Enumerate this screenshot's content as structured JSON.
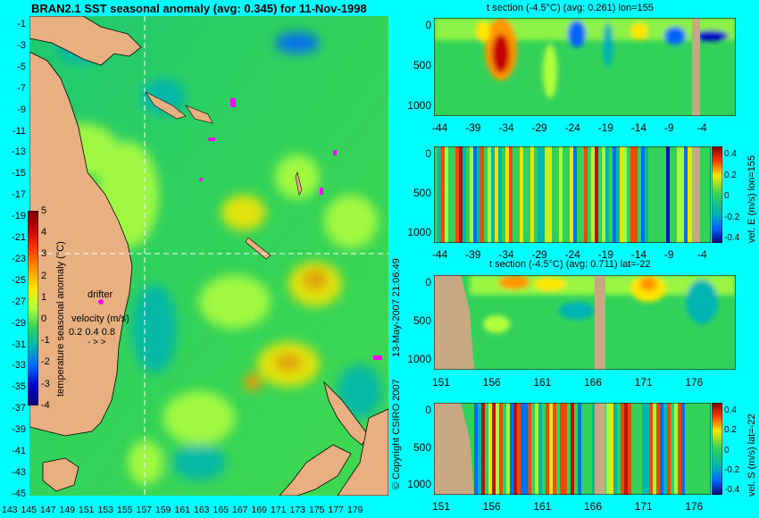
{
  "title": "BRAN2.1 SST seasonal anomaly (avg: 0.345) for 11-Nov-1998",
  "map": {
    "lat_ticks": [
      "-1",
      "-3",
      "-5",
      "-7",
      "-9",
      "-11",
      "-13",
      "-15",
      "-17",
      "-19",
      "-21",
      "-23",
      "-25",
      "-27",
      "-29",
      "-31",
      "-33",
      "-35",
      "-37",
      "-39",
      "-41",
      "-43",
      "-45"
    ],
    "lon_ticks": [
      "143",
      "145",
      "147",
      "149",
      "151",
      "153",
      "155",
      "157",
      "159",
      "161",
      "163",
      "165",
      "167",
      "169",
      "171",
      "173",
      "175",
      "177",
      "179"
    ],
    "section_lon": 155,
    "section_lat": -22,
    "colorbar": {
      "label": "temperature seasonal anomaly (°C)",
      "ticks": [
        "5",
        "4",
        "3",
        "2",
        "1",
        "0",
        "-1",
        "-2",
        "-3",
        "-4"
      ],
      "colors": [
        "#7a0000",
        "#c80000",
        "#ff3c00",
        "#ff9600",
        "#ffe600",
        "#b4ff3c",
        "#32d25a",
        "#00b4b4",
        "#0064ff",
        "#0000c8",
        "#000078"
      ]
    },
    "drifter_label": "drifter",
    "velocity_label": "velocity (m/s)",
    "velocity_scale": "0.2 0.4 0.8"
  },
  "side_text": "13-May-2007 21:06:49",
  "copyright": "© Copyright CSIRO 2007",
  "panels": {
    "p1": {
      "title": "t section (-4.5°C) (avg: 0.261) lon=155",
      "x_ticks": [
        "-44",
        "-39",
        "-34",
        "-29",
        "-24",
        "-19",
        "-14",
        "-9",
        "-4"
      ],
      "y_ticks": [
        "0",
        "500",
        "1000"
      ]
    },
    "p2": {
      "x_ticks": [
        "-44",
        "-39",
        "-34",
        "-29",
        "-24",
        "-19",
        "-14",
        "-9",
        "-4"
      ],
      "y_ticks": [
        "0",
        "500",
        "1000"
      ],
      "cbar_label": "vel. E (m/s) lon=155",
      "cbar_ticks": [
        "0.4",
        "0.2",
        "0",
        "-0.2",
        "-0.4"
      ]
    },
    "p3": {
      "title": "t section (-4.5°C) (avg: 0.711) lat=-22",
      "x_ticks": [
        "151",
        "156",
        "161",
        "166",
        "171",
        "176"
      ],
      "y_ticks": [
        "0",
        "500",
        "1000"
      ]
    },
    "p4": {
      "x_ticks": [
        "151",
        "156",
        "161",
        "166",
        "171",
        "176"
      ],
      "y_ticks": [
        "0",
        "500",
        "1000"
      ],
      "cbar_label": "vel. S (m/s) lat=-22",
      "cbar_ticks": [
        "0.4",
        "0.2",
        "0",
        "-0.2",
        "-0.4"
      ]
    }
  }
}
